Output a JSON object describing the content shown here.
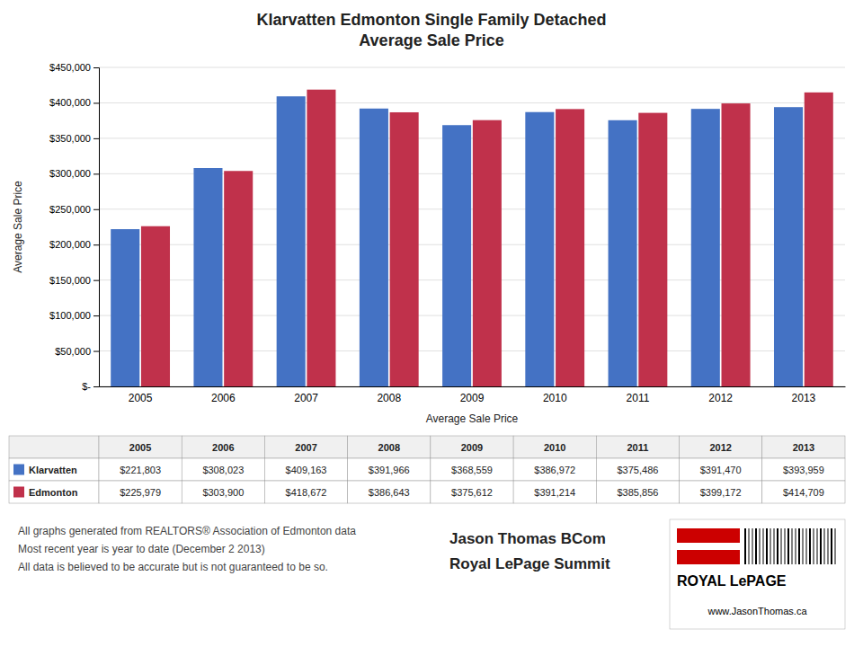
{
  "chart_data": {
    "type": "bar",
    "title": "Klarvatten Edmonton Single Family Detached\nAverage Sale Price",
    "xlabel": "Average Sale Price",
    "ylabel": "Average Sale Price",
    "categories": [
      "2005",
      "2006",
      "2007",
      "2008",
      "2009",
      "2010",
      "2011",
      "2012",
      "2013"
    ],
    "series": [
      {
        "name": "Klarvatten",
        "color": "#4472C4",
        "values": [
          221803,
          308023,
          409163,
          391966,
          368559,
          386972,
          375486,
          391470,
          393959
        ],
        "value_labels": [
          "$221,803",
          "$308,023",
          "$409,163",
          "$391,966",
          "$368,559",
          "$386,972",
          "$375,486",
          "$391,470",
          "$393,959"
        ]
      },
      {
        "name": "Edmonton",
        "color": "#C0314B",
        "values": [
          225979,
          303900,
          418672,
          386643,
          375612,
          391214,
          385856,
          399172,
          414709
        ],
        "value_labels": [
          "$225,979",
          "$303,900",
          "$418,672",
          "$386,643",
          "$375,612",
          "$391,214",
          "$385,856",
          "$399,172",
          "$414,709"
        ]
      }
    ],
    "ylim": [
      0,
      450000
    ],
    "yticks": [
      {
        "value": 0,
        "label": "$-"
      },
      {
        "value": 50000,
        "label": "$50,000"
      },
      {
        "value": 100000,
        "label": "$100,000"
      },
      {
        "value": 150000,
        "label": "$150,000"
      },
      {
        "value": 200000,
        "label": "$200,000"
      },
      {
        "value": 250000,
        "label": "$250,000"
      },
      {
        "value": 300000,
        "label": "$300,000"
      },
      {
        "value": 350000,
        "label": "$350,000"
      },
      {
        "value": 400000,
        "label": "$400,000"
      },
      {
        "value": 450000,
        "label": "$450,000"
      }
    ],
    "grid": true,
    "annotations": [
      "ROYAL LePAGE",
      "www.JasonThomas.ca",
      "All graphs generated from REALTORS® Association of Edmonton data",
      "Most recent year is year to date (December 2 2013)",
      "All data is believed to be accurate but is not guaranteed to be so.",
      "Jason Thomas BCom",
      "Royal LePage Summit"
    ]
  }
}
